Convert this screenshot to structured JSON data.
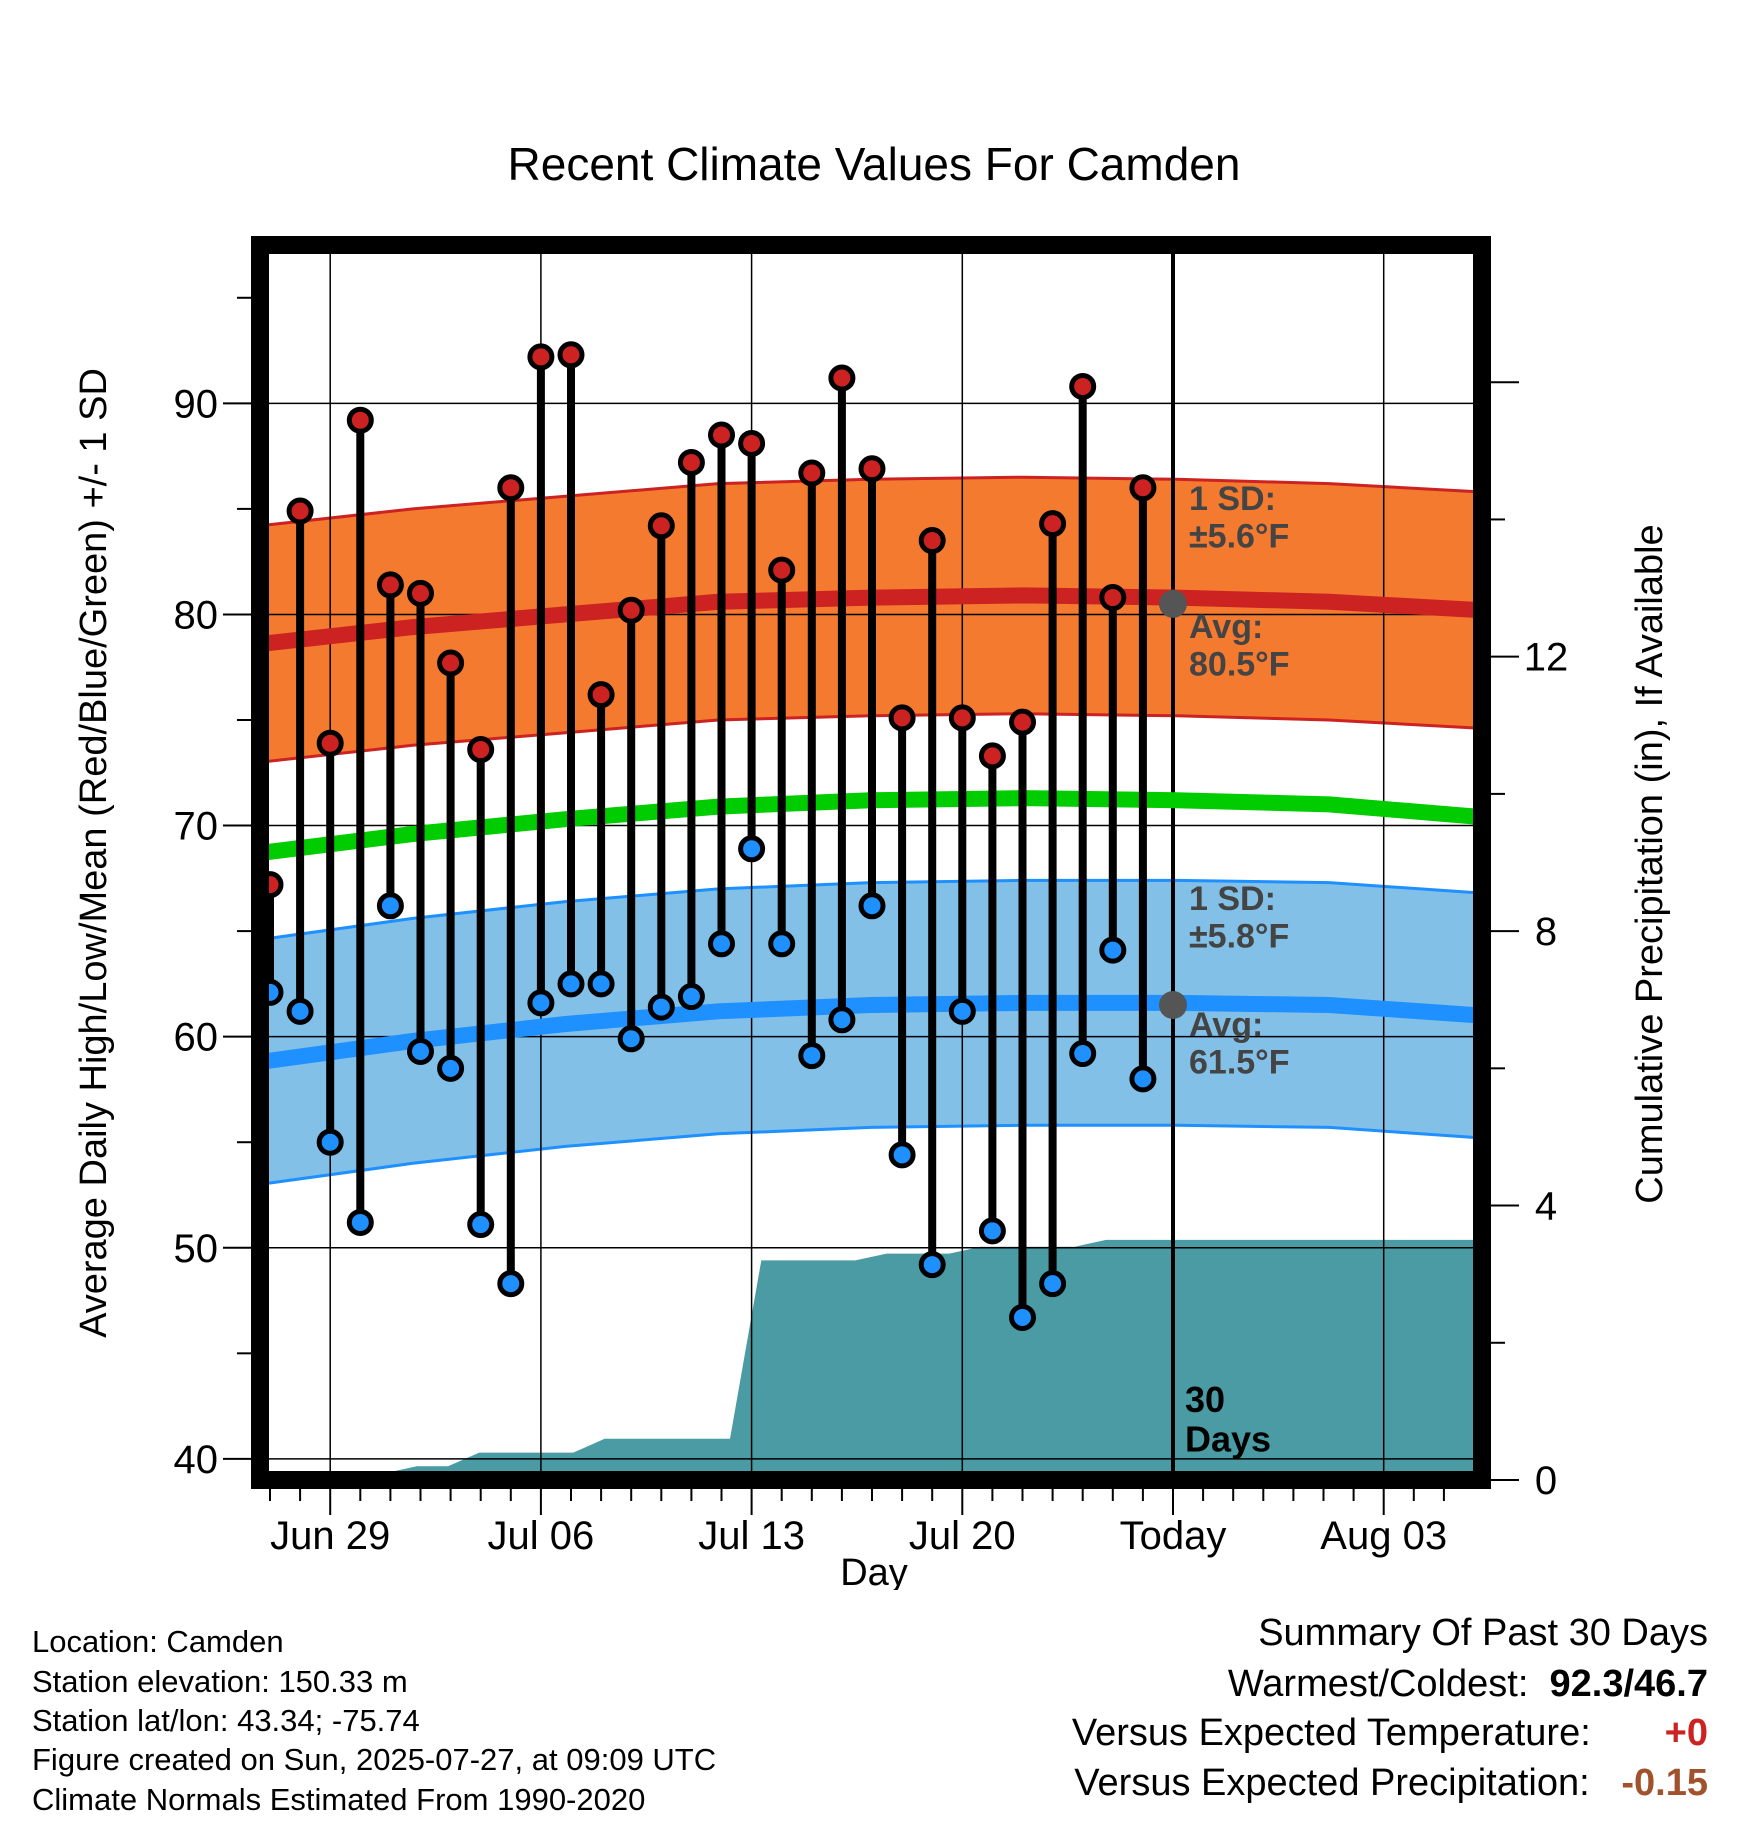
{
  "chart_data": {
    "type": "line",
    "title": "Recent Climate Values For Camden",
    "xlabel": "Day",
    "ylabel": "Average Daily High/Low/Mean (Red/Blue/Green) +/- 1 SD",
    "y2label": "Cumulative Precipitation (in), If Available",
    "ylim": [
      39,
      97.5
    ],
    "y2lim": [
      0,
      18
    ],
    "yticks": [
      "40",
      "50",
      "60",
      "70",
      "80",
      "90"
    ],
    "y2ticks": [
      "0",
      "4",
      "8",
      "12"
    ],
    "xticks": [
      "Jun 29",
      "Jul 06",
      "Jul 13",
      "Jul 20",
      "Today",
      "Aug 03"
    ],
    "days_label": "30\nDays",
    "high_sd_label": "1 SD:\n±5.6°F",
    "high_avg_label": "Avg:\n80.5°F",
    "low_sd_label": "1 SD:\n±5.8°F",
    "low_avg_label": "Avg:\n61.5°F",
    "daily": {
      "highs": [
        67.2,
        84.9,
        73.9,
        89.2,
        81.4,
        81.0,
        77.7,
        73.6,
        86.0,
        92.2,
        92.3,
        76.2,
        80.2,
        84.2,
        87.2,
        88.5,
        88.1,
        82.1,
        86.7,
        91.2,
        86.9,
        75.1,
        83.5,
        75.1,
        73.3,
        74.9,
        84.3,
        90.8,
        80.8,
        86.0
      ],
      "lows": [
        62.1,
        61.2,
        55.0,
        51.2,
        66.2,
        59.3,
        58.5,
        51.1,
        48.3,
        61.6,
        62.5,
        62.5,
        59.9,
        61.4,
        61.9,
        64.4,
        68.9,
        64.4,
        59.1,
        60.8,
        66.2,
        54.4,
        49.2,
        61.2,
        50.8,
        46.7,
        48.3,
        59.2,
        64.1,
        58.0
      ]
    },
    "normals": {
      "high_mean": [
        78.6,
        79.4,
        80.0,
        80.6,
        80.8,
        80.9,
        80.8,
        80.6,
        80.2
      ],
      "low_mean": [
        58.8,
        59.8,
        60.6,
        61.2,
        61.5,
        61.6,
        61.6,
        61.5,
        61.0
      ],
      "mean": [
        68.7,
        69.6,
        70.3,
        70.9,
        71.2,
        71.3,
        71.2,
        71.0,
        70.4
      ]
    },
    "precip_cumulative": [
      0,
      0,
      0,
      0,
      0.1,
      0.2,
      0.2,
      0.4,
      0.4,
      0.4,
      0.4,
      0.6,
      0.6,
      0.6,
      0.6,
      0.6,
      3.2,
      3.2,
      3.2,
      3.2,
      3.3,
      3.3,
      3.3,
      3.4,
      3.4,
      3.4,
      3.4,
      3.5,
      3.5,
      3.5,
      3.5,
      3.5,
      3.5,
      3.5,
      3.5,
      3.5,
      3.5,
      3.5,
      3.5,
      3.5
    ],
    "colors": {
      "high": "#cc2222",
      "high_band": "#f47a30",
      "low": "#1e90ff",
      "low_band": "#82c0e8",
      "mean": "#00cc00",
      "precip": "#4a9ba4",
      "label": "#444444"
    }
  },
  "info": {
    "location": "Location: Camden",
    "elevation": "Station elevation: 150.33 m",
    "latlon": "Station lat/lon: 43.34; -75.74",
    "created": "Figure created on Sun, 2025-07-27, at 09:09 UTC",
    "normals": "Climate Normals Estimated From 1990-2020"
  },
  "summary": {
    "title": "Summary Of Past 30 Days",
    "warm_cold_label": "Warmest/Coldest:",
    "warm_cold_value": "92.3/46.7",
    "temp_label": "Versus Expected Temperature:",
    "temp_value": "+0",
    "precip_label": "Versus Expected Precipitation:",
    "precip_value": "-0.15",
    "temp_value_color": "#cc2222",
    "precip_value_color": "#a0522d"
  }
}
